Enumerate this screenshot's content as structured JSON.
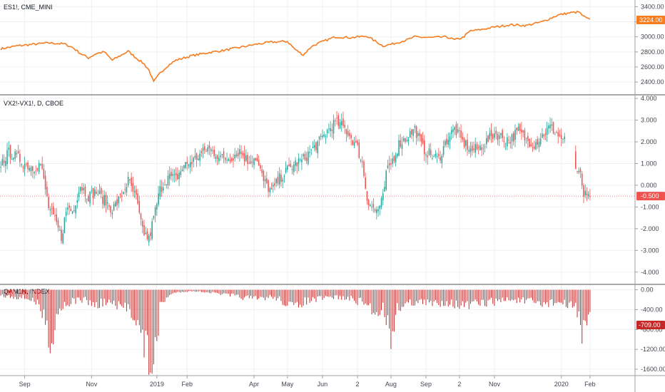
{
  "colors": {
    "es_line": "#f57c1f",
    "up": "#26a69a",
    "down": "#ef5350",
    "hist": "#c62828",
    "grid": "#eef0f3",
    "level_line": "#ef5350"
  },
  "panels": {
    "es": {
      "title": "ES1!, CME_MINI",
      "ylim": [
        2250,
        3470
      ],
      "ticks": [
        "3400.00",
        "3200.00",
        "3000.00",
        "2800.00",
        "2600.00",
        "2400.00"
      ],
      "tick_values": [
        3400,
        3200,
        3000,
        2800,
        2600,
        2400
      ],
      "last_label": "3224.00",
      "last_value": 3224
    },
    "vx": {
      "title": "VX2!-VX1!, D, CBOE",
      "ylim": [
        -4.5,
        4.1
      ],
      "ticks": [
        "4.000",
        "3.000",
        "2.000",
        "1.000",
        "0.000",
        "-1.000",
        "-2.000",
        "-3.000",
        "-4.000"
      ],
      "tick_values": [
        4,
        3,
        2,
        1,
        0,
        -1,
        -2,
        -3,
        -4
      ],
      "last_label": "-0.500",
      "last_value": -0.5
    },
    "index": {
      "title": "QAM1N, INDEX",
      "ylim": [
        -1700,
        80
      ],
      "ticks": [
        "0.00",
        "-400.00",
        "-800.00",
        "-1200.00",
        "-1600.00"
      ],
      "tick_values": [
        0,
        -400,
        -800,
        -1200,
        -1600
      ],
      "last_label": "-709.00",
      "last_value": -709
    }
  },
  "x_axis": {
    "labels": [
      "Sep",
      "Nov",
      "2019",
      "Feb",
      "Apr",
      "May",
      "Jun",
      "2",
      "Aug",
      "Sep",
      "2",
      "Nov",
      "2020",
      "Feb"
    ],
    "label_index": [
      15,
      57,
      98,
      117,
      159,
      180,
      202,
      224,
      245,
      267,
      288,
      310,
      352,
      370
    ]
  },
  "chart_data": [
    {
      "type": "line",
      "title": "ES1!, CME_MINI",
      "x_start": "2018-08-13",
      "x_end": "2020-01-31",
      "anchor_index": [
        0,
        10,
        20,
        30,
        40,
        45,
        50,
        55,
        60,
        65,
        70,
        75,
        80,
        85,
        90,
        93,
        96,
        100,
        105,
        110,
        120,
        130,
        140,
        150,
        160,
        170,
        180,
        185,
        190,
        195,
        200,
        205,
        210,
        220,
        230,
        240,
        245,
        250,
        255,
        260,
        270,
        280,
        285,
        290,
        295,
        300,
        310,
        320,
        330,
        340,
        350,
        358,
        363,
        366,
        370
      ],
      "values": [
        2840,
        2880,
        2900,
        2920,
        2905,
        2860,
        2780,
        2720,
        2780,
        2800,
        2690,
        2750,
        2810,
        2720,
        2640,
        2560,
        2400,
        2520,
        2620,
        2690,
        2750,
        2790,
        2820,
        2860,
        2900,
        2930,
        2940,
        2830,
        2760,
        2870,
        2920,
        2960,
        3000,
        2990,
        3010,
        2880,
        2900,
        2930,
        2960,
        3000,
        2990,
        3000,
        2960,
        2990,
        3080,
        3090,
        3130,
        3160,
        3150,
        3200,
        3290,
        3320,
        3330,
        3270,
        3224
      ],
      "ylim": [
        2250,
        3470
      ]
    },
    {
      "type": "candlestick",
      "title": "VX2!-VX1!, D, CBOE",
      "x_start": "2018-08-13",
      "x_end": "2020-01-31",
      "anchor_index": [
        0,
        5,
        10,
        15,
        20,
        25,
        30,
        35,
        38,
        40,
        42,
        45,
        50,
        55,
        60,
        65,
        70,
        75,
        80,
        85,
        88,
        90,
        93,
        96,
        100,
        105,
        110,
        115,
        120,
        130,
        140,
        145,
        150,
        155,
        160,
        165,
        170,
        175,
        180,
        185,
        188,
        190,
        195,
        200,
        205,
        210,
        215,
        220,
        224,
        227,
        230,
        235,
        238,
        240,
        242,
        245,
        248,
        250,
        255,
        260,
        265,
        270,
        275,
        280,
        285,
        290,
        293,
        295,
        300,
        305,
        310,
        315,
        320,
        325,
        330,
        335,
        340,
        345,
        350,
        355,
        358,
        362,
        364,
        366,
        368,
        370
      ],
      "close_values": [
        1.0,
        1.5,
        1.3,
        1.0,
        0.8,
        1.0,
        -1.0,
        -1.8,
        -2.4,
        -1.6,
        -1.0,
        -1.2,
        0.0,
        -0.5,
        -0.3,
        -0.7,
        -1.1,
        -0.6,
        0.2,
        -0.6,
        -1.8,
        -2.2,
        -2.5,
        -1.5,
        -0.2,
        0.4,
        0.3,
        0.9,
        1.1,
        1.7,
        1.2,
        1.3,
        1.6,
        1.1,
        1.3,
        0.2,
        -0.3,
        0.3,
        0.7,
        1.0,
        1.1,
        1.2,
        1.6,
        2.0,
        2.5,
        2.9,
        2.7,
        2.2,
        1.7,
        1.0,
        -0.6,
        -1.2,
        -1.0,
        -0.6,
        0.5,
        1.0,
        1.5,
        1.9,
        2.2,
        2.6,
        1.7,
        1.4,
        1.2,
        2.1,
        2.6,
        2.0,
        1.8,
        1.6,
        1.7,
        2.0,
        2.4,
        2.2,
        2.1,
        2.5,
        2.1,
        1.9,
        2.3,
        2.7,
        2.3,
        2.0,
        2.3,
        0.4,
        0.5,
        -0.6,
        -0.3,
        -0.5
      ],
      "ylim": [
        -4.5,
        4.1
      ],
      "reference_level": -0.5
    },
    {
      "type": "bar",
      "title": "QAM1N, INDEX",
      "x_start": "2018-08-13",
      "x_end": "2020-01-31",
      "anchor_index": [
        0,
        10,
        20,
        25,
        30,
        32,
        35,
        40,
        45,
        50,
        55,
        60,
        65,
        70,
        75,
        80,
        85,
        90,
        93,
        96,
        98,
        100,
        105,
        110,
        120,
        130,
        140,
        150,
        160,
        170,
        175,
        180,
        185,
        190,
        200,
        210,
        220,
        230,
        235,
        240,
        245,
        248,
        250,
        255,
        260,
        270,
        280,
        290,
        300,
        310,
        320,
        330,
        340,
        350,
        355,
        360,
        363,
        365,
        367,
        370
      ],
      "values": [
        -120,
        -150,
        -200,
        -400,
        -900,
        -1150,
        -500,
        -300,
        -250,
        -200,
        -250,
        -350,
        -250,
        -300,
        -400,
        -350,
        -600,
        -1200,
        -1400,
        -1600,
        -1400,
        -300,
        -150,
        -50,
        -30,
        -50,
        -100,
        -150,
        -200,
        -150,
        -200,
        -300,
        -400,
        -250,
        -200,
        -150,
        -200,
        -300,
        -500,
        -350,
        -1000,
        -500,
        -350,
        -300,
        -250,
        -300,
        -250,
        -350,
        -300,
        -250,
        -200,
        -250,
        -300,
        -250,
        -350,
        -300,
        -500,
        -950,
        -850,
        -709
      ],
      "ylim": [
        -1700,
        80
      ]
    }
  ]
}
